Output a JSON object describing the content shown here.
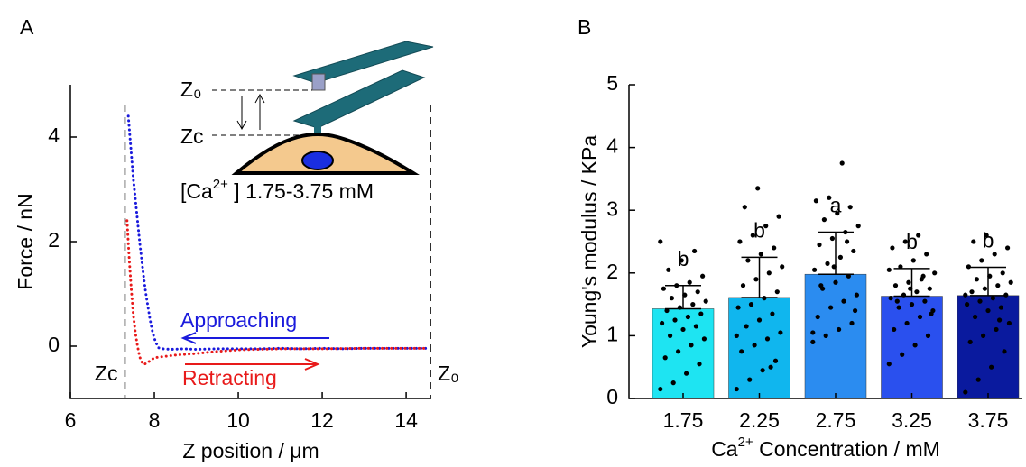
{
  "chart_data": [
    {
      "type": "line",
      "panel_label": "A",
      "x_label": "Z position / μm",
      "y_label": "Force / nN",
      "xlim": [
        6,
        14.6
      ],
      "ylim": [
        -1,
        5
      ],
      "xticks": [
        6,
        8,
        10,
        12,
        14
      ],
      "yticks": [
        0,
        2,
        4
      ],
      "series": [
        {
          "name": "Approaching",
          "color": "#1a1adc",
          "x": [
            7.38,
            7.42,
            7.46,
            7.5,
            7.55,
            7.6,
            7.65,
            7.7,
            7.75,
            7.8,
            7.85,
            7.9,
            7.95,
            8.0,
            8.05,
            8.1,
            8.2,
            8.4,
            8.7,
            9,
            9.5,
            10,
            10.5,
            11,
            11.5,
            12,
            12.5,
            13,
            13.5,
            14,
            14.5
          ],
          "values": [
            4.4,
            4.0,
            3.6,
            3.2,
            2.8,
            2.4,
            2.0,
            1.65,
            1.3,
            1.0,
            0.75,
            0.5,
            0.3,
            0.15,
            0.05,
            -0.03,
            -0.05,
            -0.06,
            -0.05,
            -0.06,
            -0.05,
            -0.05,
            -0.05,
            -0.04,
            -0.05,
            -0.04,
            -0.05,
            -0.04,
            -0.04,
            -0.04,
            -0.04
          ]
        },
        {
          "name": "Retracting",
          "color": "#e81a1a",
          "x": [
            7.35,
            7.4,
            7.45,
            7.5,
            7.55,
            7.6,
            7.65,
            7.7,
            7.75,
            7.8,
            7.9,
            8.0,
            8.2,
            8.5,
            9,
            9.5,
            10,
            10.5,
            11,
            12,
            13,
            14,
            14.5
          ],
          "values": [
            2.4,
            1.7,
            1.1,
            0.6,
            0.25,
            0.0,
            -0.2,
            -0.3,
            -0.35,
            -0.33,
            -0.28,
            -0.22,
            -0.2,
            -0.17,
            -0.14,
            -0.1,
            -0.07,
            -0.06,
            -0.05,
            -0.05,
            -0.04,
            -0.04,
            -0.04
          ]
        }
      ],
      "reference_lines": [
        {
          "x": 7.3,
          "label": "Zc"
        },
        {
          "x": 14.58,
          "label": "Z₀"
        }
      ],
      "inset": {
        "z0": "Z₀",
        "zc": "Zc",
        "condition": [
          "[Ca",
          "2+",
          " ] 1.75-3.75 mM"
        ]
      }
    },
    {
      "type": "bar",
      "panel_label": "B",
      "x_label": [
        "Ca",
        "2+",
        " Concentration / mM"
      ],
      "y_label": "Young's modulus / KPa",
      "categories": [
        "1.75",
        "2.25",
        "2.75",
        "3.25",
        "3.75"
      ],
      "values": [
        1.43,
        1.61,
        1.98,
        1.63,
        1.64
      ],
      "errors": [
        0.37,
        0.64,
        0.67,
        0.44,
        0.45
      ],
      "colors": [
        "#1ee4f2",
        "#10b6ee",
        "#2b8cf0",
        "#2a50ee",
        "#0a1a9e"
      ],
      "significance": [
        "b",
        "b",
        "a",
        "b",
        "b"
      ],
      "ylim": [
        0,
        5
      ],
      "yticks": [
        0,
        1,
        2,
        3,
        4,
        5
      ],
      "points": [
        [
          0.15,
          0.25,
          0.4,
          0.55,
          0.65,
          0.75,
          0.85,
          0.95,
          1.0,
          1.1,
          1.15,
          1.2,
          1.25,
          1.3,
          1.35,
          1.4,
          1.45,
          1.5,
          1.55,
          1.6,
          1.65,
          1.7,
          1.75,
          1.8,
          1.85,
          1.95,
          2.05,
          2.2,
          2.35,
          2.5
        ],
        [
          0.15,
          0.3,
          0.45,
          0.6,
          0.75,
          0.85,
          0.95,
          1.05,
          1.15,
          1.25,
          1.35,
          1.45,
          1.5,
          1.6,
          1.7,
          1.8,
          1.9,
          2.0,
          2.1,
          2.2,
          2.3,
          2.4,
          2.5,
          2.6,
          2.75,
          2.9,
          3.05,
          3.35,
          0.5,
          1.0
        ],
        [
          0.9,
          1.0,
          1.1,
          1.2,
          1.3,
          1.45,
          1.55,
          1.65,
          1.75,
          1.85,
          1.95,
          2.05,
          2.15,
          2.25,
          2.35,
          2.45,
          2.55,
          2.65,
          2.75,
          2.85,
          2.95,
          3.05,
          3.15,
          3.2,
          3.75,
          1.4,
          1.8,
          2.1,
          2.5,
          1.05
        ],
        [
          0.55,
          0.7,
          0.85,
          1.0,
          1.1,
          1.2,
          1.3,
          1.4,
          1.45,
          1.5,
          1.55,
          1.6,
          1.65,
          1.7,
          1.75,
          1.8,
          1.85,
          1.9,
          2.0,
          2.1,
          2.2,
          2.3,
          2.4,
          2.5,
          2.6,
          1.35,
          1.55,
          1.75,
          1.95,
          2.05
        ],
        [
          0.1,
          0.3,
          0.5,
          0.75,
          0.9,
          1.0,
          1.1,
          1.2,
          1.3,
          1.4,
          1.45,
          1.5,
          1.55,
          1.6,
          1.65,
          1.7,
          1.75,
          1.8,
          1.85,
          1.9,
          1.95,
          2.0,
          2.1,
          2.2,
          2.3,
          2.4,
          2.5,
          2.6,
          1.25,
          1.65
        ]
      ]
    }
  ]
}
